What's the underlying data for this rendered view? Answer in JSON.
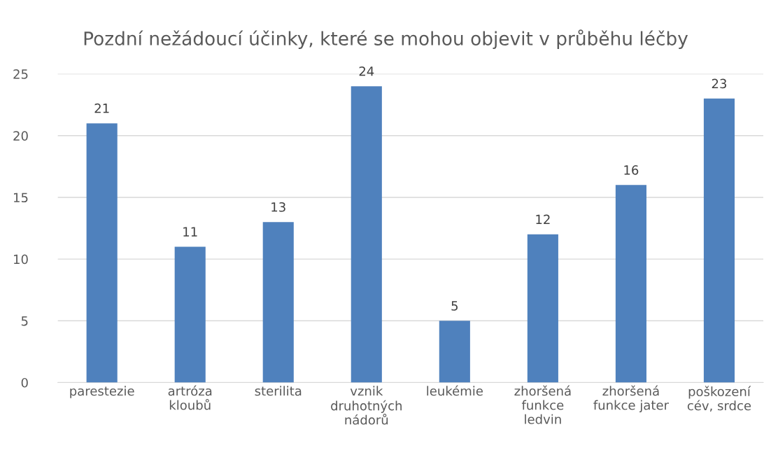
{
  "chart_data": {
    "type": "bar",
    "title": "Pozdní nežádoucí účinky, které se mohou objevit v průběhu léčby",
    "categories": [
      "parestezie",
      "artróza\nkloubů",
      "sterilita",
      "vznik\ndruhotných\nnádorů",
      "leukémie",
      "zhoršená\nfunkce\nledvin",
      "zhoršená\nfunkce jater",
      "poškození\ncév, srdce"
    ],
    "values": [
      21,
      11,
      13,
      24,
      5,
      12,
      16,
      23
    ],
    "color": "#4f81bd",
    "ylim": [
      0,
      25
    ],
    "yticks": [
      0,
      5,
      10,
      15,
      20,
      25
    ],
    "grid": "y",
    "data_labels": true
  }
}
